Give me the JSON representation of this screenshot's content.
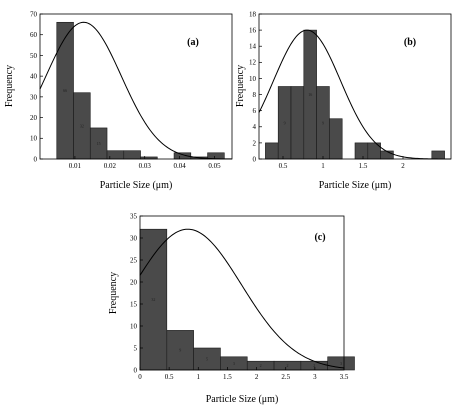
{
  "chart_data": [
    {
      "type": "bar",
      "panel_label": "(a)",
      "xlabel": "Particle Size (μm)",
      "ylabel": "Frequency",
      "xlim": [
        0,
        0.055
      ],
      "ylim": [
        0,
        70
      ],
      "xticks": [
        0.01,
        0.02,
        0.03,
        0.04,
        0.05
      ],
      "xtick_labels": [
        "0.01",
        "0.02",
        "0.03",
        "0.04",
        "0.05"
      ],
      "yticks": [
        0,
        10,
        20,
        30,
        40,
        50,
        60,
        70
      ],
      "ytick_labels": [
        "0",
        "10",
        "20",
        "30",
        "40",
        "50",
        "60",
        "70"
      ],
      "bin_width": 0.0048,
      "bin_starts": [
        0.0048,
        0.0096,
        0.0144,
        0.0192,
        0.024,
        0.0288,
        0.0336,
        0.0384,
        0.0432,
        0.048
      ],
      "values": [
        66,
        32,
        15,
        4,
        4,
        1,
        0,
        3,
        1,
        3
      ],
      "data_labels": [
        "66",
        "32",
        "15",
        "",
        "",
        "",
        "",
        "",
        "",
        ""
      ],
      "fit_curve": {
        "mean": 0.0125,
        "sd": 0.0108,
        "peak": 66
      }
    },
    {
      "type": "bar",
      "panel_label": "(b)",
      "xlabel": "Particle Size (μm)",
      "ylabel": "Frequency",
      "xlim": [
        0.2,
        2.6
      ],
      "ylim": [
        0,
        18
      ],
      "xticks": [
        0.5,
        1.0,
        1.5,
        2.0
      ],
      "xtick_labels": [
        "0.5",
        "1",
        "1.5",
        "2"
      ],
      "yticks": [
        0,
        2,
        4,
        6,
        8,
        10,
        12,
        14,
        16,
        18
      ],
      "ytick_labels": [
        "0",
        "2",
        "4",
        "6",
        "8",
        "10",
        "12",
        "14",
        "16",
        "18"
      ],
      "bin_width": 0.16,
      "bin_starts": [
        0.28,
        0.44,
        0.6,
        0.76,
        0.92,
        1.08,
        1.24,
        1.4,
        1.56,
        1.72,
        1.88,
        2.04,
        2.2,
        2.36
      ],
      "values": [
        2,
        9,
        9,
        16,
        9,
        5,
        0,
        2,
        2,
        1,
        0,
        0,
        0,
        1
      ],
      "data_labels": [
        "",
        "9",
        "",
        "16",
        "9",
        "",
        "",
        "",
        "",
        "",
        "",
        "",
        "",
        ""
      ],
      "fit_curve": {
        "mean": 0.8,
        "sd": 0.42,
        "peak": 16
      }
    },
    {
      "type": "bar",
      "panel_label": "(c)",
      "xlabel": "Particle Size (μm)",
      "ylabel": "Frequency",
      "xlim": [
        0,
        3.5
      ],
      "ylim": [
        0,
        35
      ],
      "xticks": [
        0,
        0.5,
        1,
        1.5,
        2,
        2.5,
        3,
        3.5
      ],
      "xtick_labels": [
        "0",
        "0.5",
        "1",
        "1.5",
        "2",
        "2.5",
        "3",
        "3.5"
      ],
      "yticks": [
        0,
        5,
        10,
        15,
        20,
        25,
        30,
        35
      ],
      "ytick_labels": [
        "0",
        "5",
        "10",
        "15",
        "20",
        "25",
        "30",
        "35"
      ],
      "bin_width": 0.46,
      "bin_starts": [
        0.0,
        0.46,
        0.92,
        1.38,
        1.84,
        2.3,
        2.76,
        3.22
      ],
      "values": [
        32,
        9,
        5,
        3,
        2,
        2,
        2,
        3
      ],
      "data_labels": [
        "32",
        "9",
        "5",
        "3",
        "2",
        "2",
        "2",
        "3"
      ],
      "fit_curve": {
        "mean": 0.82,
        "sd": 0.92,
        "peak": 32
      }
    }
  ],
  "colors": {
    "bar_fill": "#4a4a4a",
    "bar_stroke": "#1a1a1a",
    "curve": "#000000",
    "axis": "#000000"
  }
}
